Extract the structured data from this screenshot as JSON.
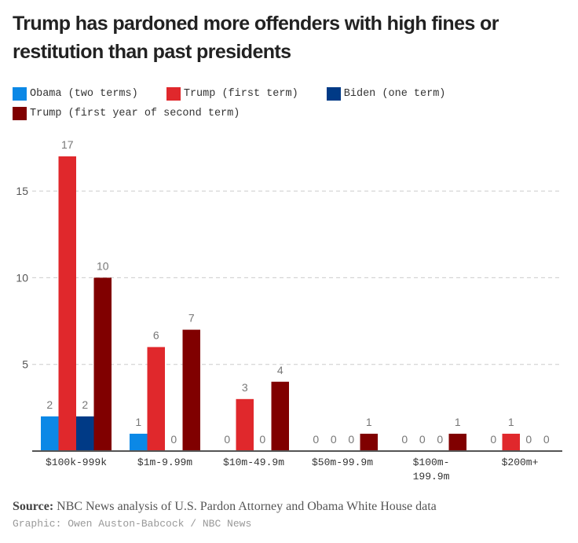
{
  "chart_data": {
    "type": "bar",
    "title": "Trump has pardoned more offenders with high fines or restitution than past presidents",
    "categories": [
      "$100k-999k",
      "$1m-9.99m",
      "$10m-49.9m",
      "$50m-99.9m",
      "$100m-199.9m",
      "$200m+"
    ],
    "series": [
      {
        "name": "Obama (two terms)",
        "color": "#0b88e6",
        "values": [
          2,
          1,
          0,
          0,
          0,
          0
        ]
      },
      {
        "name": "Trump (first term)",
        "color": "#e0282c",
        "values": [
          17,
          6,
          3,
          0,
          0,
          1
        ]
      },
      {
        "name": "Biden (one term)",
        "color": "#003a86",
        "values": [
          2,
          0,
          0,
          0,
          0,
          0
        ]
      },
      {
        "name": "Trump (first year of second term)",
        "color": "#800000",
        "values": [
          10,
          7,
          4,
          1,
          1,
          0
        ]
      }
    ],
    "yticks": [
      5,
      10,
      15
    ],
    "ylim": [
      0,
      19
    ],
    "grid": true,
    "legend": "top-left"
  },
  "source_label": "Source:",
  "source_text": "NBC News analysis of U.S. Pardon Attorney and Obama White House data",
  "credit": "Graphic: Owen Auston-Babcock / NBC News"
}
